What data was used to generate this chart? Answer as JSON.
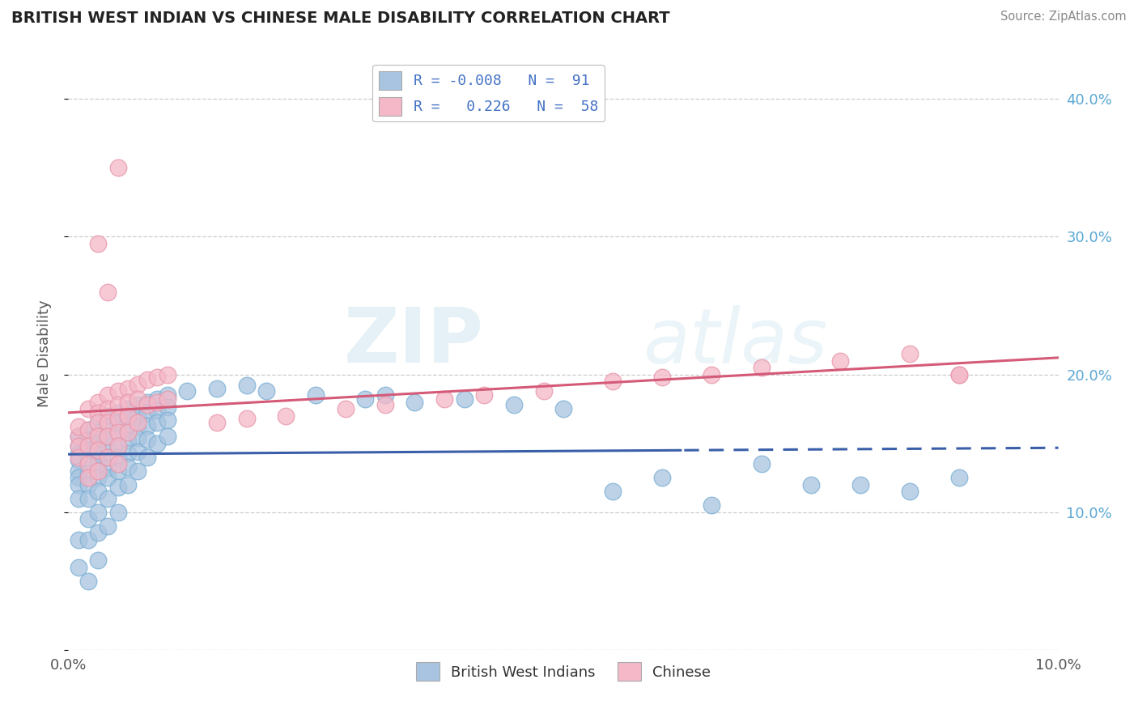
{
  "title": "BRITISH WEST INDIAN VS CHINESE MALE DISABILITY CORRELATION CHART",
  "source": "Source: ZipAtlas.com",
  "ylabel": "Male Disability",
  "xlim": [
    0.0,
    0.1
  ],
  "ylim": [
    0.0,
    0.43
  ],
  "bwi_color": "#a8c4e0",
  "bwi_edge_color": "#7aafd4",
  "bwi_line_color": "#3a5fa8",
  "chinese_color": "#f4b8c8",
  "chinese_edge_color": "#e896aa",
  "chinese_line_color": "#d45a78",
  "bwi_R": -0.008,
  "bwi_N": 91,
  "chinese_R": 0.226,
  "chinese_N": 58,
  "watermark_zip": "ZIP",
  "watermark_atlas": "atlas",
  "background_color": "#ffffff",
  "grid_color": "#cccccc",
  "right_tick_color": "#5ba8d4",
  "legend_label_color": "#4472c4",
  "bwi_scatter_x": [
    0.001,
    0.001,
    0.001,
    0.001,
    0.001,
    0.001,
    0.001,
    0.001,
    0.001,
    0.001,
    0.002,
    0.002,
    0.002,
    0.002,
    0.002,
    0.002,
    0.002,
    0.002,
    0.002,
    0.002,
    0.003,
    0.003,
    0.003,
    0.003,
    0.003,
    0.003,
    0.003,
    0.003,
    0.003,
    0.003,
    0.004,
    0.004,
    0.004,
    0.004,
    0.004,
    0.004,
    0.004,
    0.004,
    0.004,
    0.005,
    0.005,
    0.005,
    0.005,
    0.005,
    0.005,
    0.005,
    0.005,
    0.006,
    0.006,
    0.006,
    0.006,
    0.006,
    0.006,
    0.006,
    0.007,
    0.007,
    0.007,
    0.007,
    0.007,
    0.007,
    0.008,
    0.008,
    0.008,
    0.008,
    0.008,
    0.009,
    0.009,
    0.009,
    0.009,
    0.01,
    0.01,
    0.01,
    0.01,
    0.012,
    0.015,
    0.018,
    0.02,
    0.025,
    0.03,
    0.032,
    0.035,
    0.04,
    0.045,
    0.05,
    0.055,
    0.06,
    0.065,
    0.07,
    0.075,
    0.08,
    0.085,
    0.09
  ],
  "bwi_scatter_y": [
    0.155,
    0.148,
    0.142,
    0.138,
    0.13,
    0.125,
    0.12,
    0.11,
    0.08,
    0.06,
    0.16,
    0.152,
    0.145,
    0.138,
    0.128,
    0.12,
    0.11,
    0.095,
    0.08,
    0.05,
    0.165,
    0.158,
    0.15,
    0.142,
    0.135,
    0.125,
    0.115,
    0.1,
    0.085,
    0.065,
    0.17,
    0.162,
    0.155,
    0.148,
    0.14,
    0.132,
    0.125,
    0.11,
    0.09,
    0.172,
    0.165,
    0.158,
    0.148,
    0.14,
    0.13,
    0.118,
    0.1,
    0.175,
    0.168,
    0.16,
    0.152,
    0.143,
    0.133,
    0.12,
    0.178,
    0.17,
    0.162,
    0.154,
    0.144,
    0.13,
    0.18,
    0.172,
    0.163,
    0.153,
    0.14,
    0.182,
    0.174,
    0.165,
    0.15,
    0.185,
    0.176,
    0.167,
    0.155,
    0.188,
    0.19,
    0.192,
    0.188,
    0.185,
    0.182,
    0.185,
    0.18,
    0.182,
    0.178,
    0.175,
    0.115,
    0.125,
    0.105,
    0.135,
    0.12,
    0.12,
    0.115,
    0.125
  ],
  "chinese_scatter_x": [
    0.001,
    0.001,
    0.001,
    0.001,
    0.002,
    0.002,
    0.002,
    0.002,
    0.002,
    0.003,
    0.003,
    0.003,
    0.003,
    0.003,
    0.003,
    0.004,
    0.004,
    0.004,
    0.004,
    0.004,
    0.005,
    0.005,
    0.005,
    0.005,
    0.005,
    0.005,
    0.006,
    0.006,
    0.006,
    0.006,
    0.007,
    0.007,
    0.007,
    0.008,
    0.008,
    0.009,
    0.009,
    0.01,
    0.01,
    0.015,
    0.018,
    0.022,
    0.028,
    0.032,
    0.038,
    0.042,
    0.048,
    0.055,
    0.06,
    0.065,
    0.07,
    0.078,
    0.085,
    0.09,
    0.003,
    0.004,
    0.005,
    0.09
  ],
  "chinese_scatter_y": [
    0.155,
    0.148,
    0.162,
    0.14,
    0.175,
    0.16,
    0.148,
    0.135,
    0.125,
    0.18,
    0.172,
    0.165,
    0.155,
    0.145,
    0.13,
    0.185,
    0.175,
    0.165,
    0.155,
    0.14,
    0.188,
    0.178,
    0.168,
    0.158,
    0.148,
    0.135,
    0.19,
    0.18,
    0.17,
    0.158,
    0.193,
    0.182,
    0.165,
    0.196,
    0.178,
    0.198,
    0.18,
    0.2,
    0.182,
    0.165,
    0.168,
    0.17,
    0.175,
    0.178,
    0.182,
    0.185,
    0.188,
    0.195,
    0.198,
    0.2,
    0.205,
    0.21,
    0.215,
    0.2,
    0.295,
    0.26,
    0.35,
    0.2
  ]
}
